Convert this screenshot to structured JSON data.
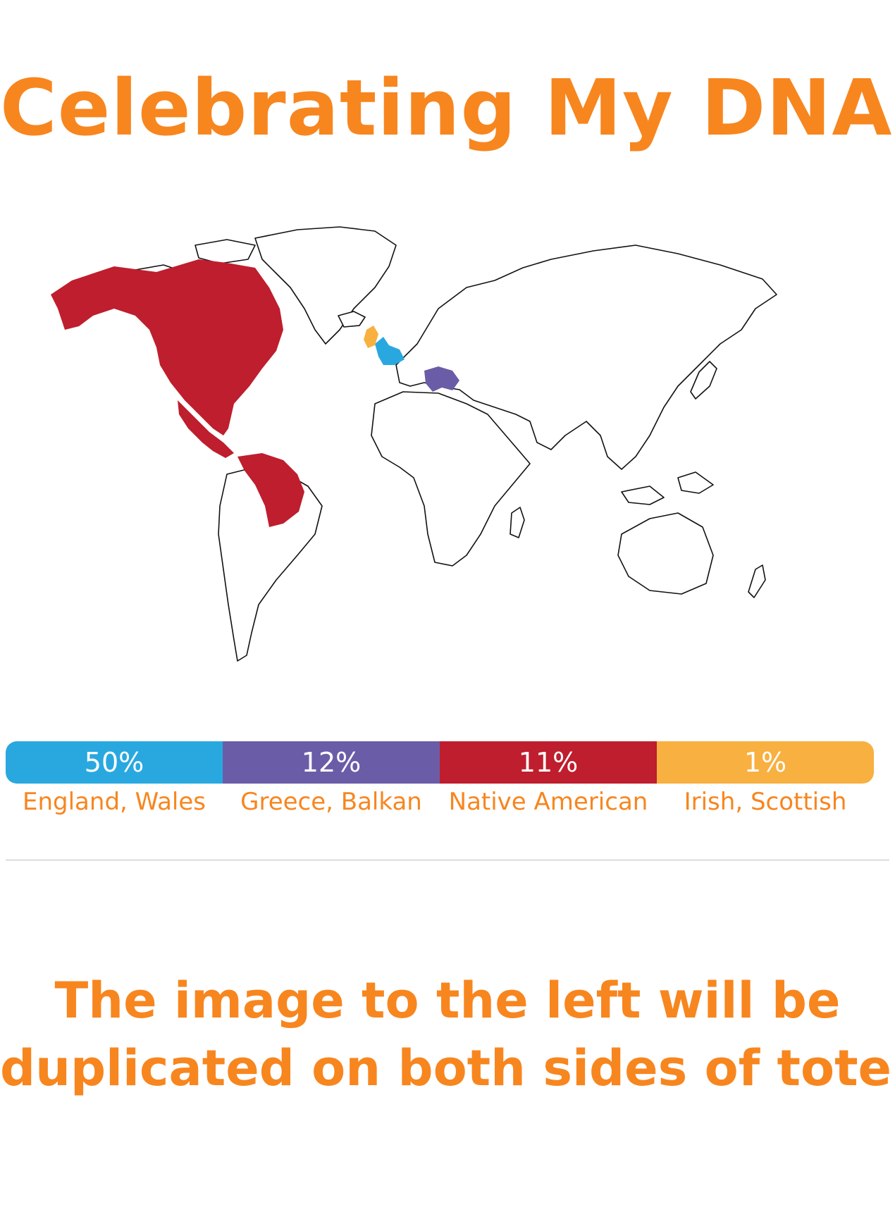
{
  "title": "Celebrating My DNA!",
  "colors": {
    "accent": "#f7861f",
    "england_wales": "#29a8e0",
    "greece_balkan": "#6b5ca8",
    "native_american": "#be1e2d",
    "irish_scottish": "#f8b041"
  },
  "map": {
    "regions": [
      {
        "name": "North America",
        "highlight": "native_american"
      },
      {
        "name": "Central & northern South America",
        "highlight": "native_american"
      },
      {
        "name": "Britain / Northern France",
        "highlight": "england_wales"
      },
      {
        "name": "Greece / Balkans",
        "highlight": "greece_balkan"
      },
      {
        "name": "Ireland / Scotland",
        "highlight": "irish_scottish"
      }
    ]
  },
  "legend": [
    {
      "percent": "50%",
      "label": "England, Wales",
      "color": "#29a8e0"
    },
    {
      "percent": "12%",
      "label": "Greece, Balkan",
      "color": "#6b5ca8"
    },
    {
      "percent": "11%",
      "label": "Native American",
      "color": "#be1e2d"
    },
    {
      "percent": "1%",
      "label": "Irish, Scottish",
      "color": "#f8b041"
    }
  ],
  "footer": {
    "line1": "The image to the left will be",
    "line2": "duplicated on both sides of tote."
  }
}
